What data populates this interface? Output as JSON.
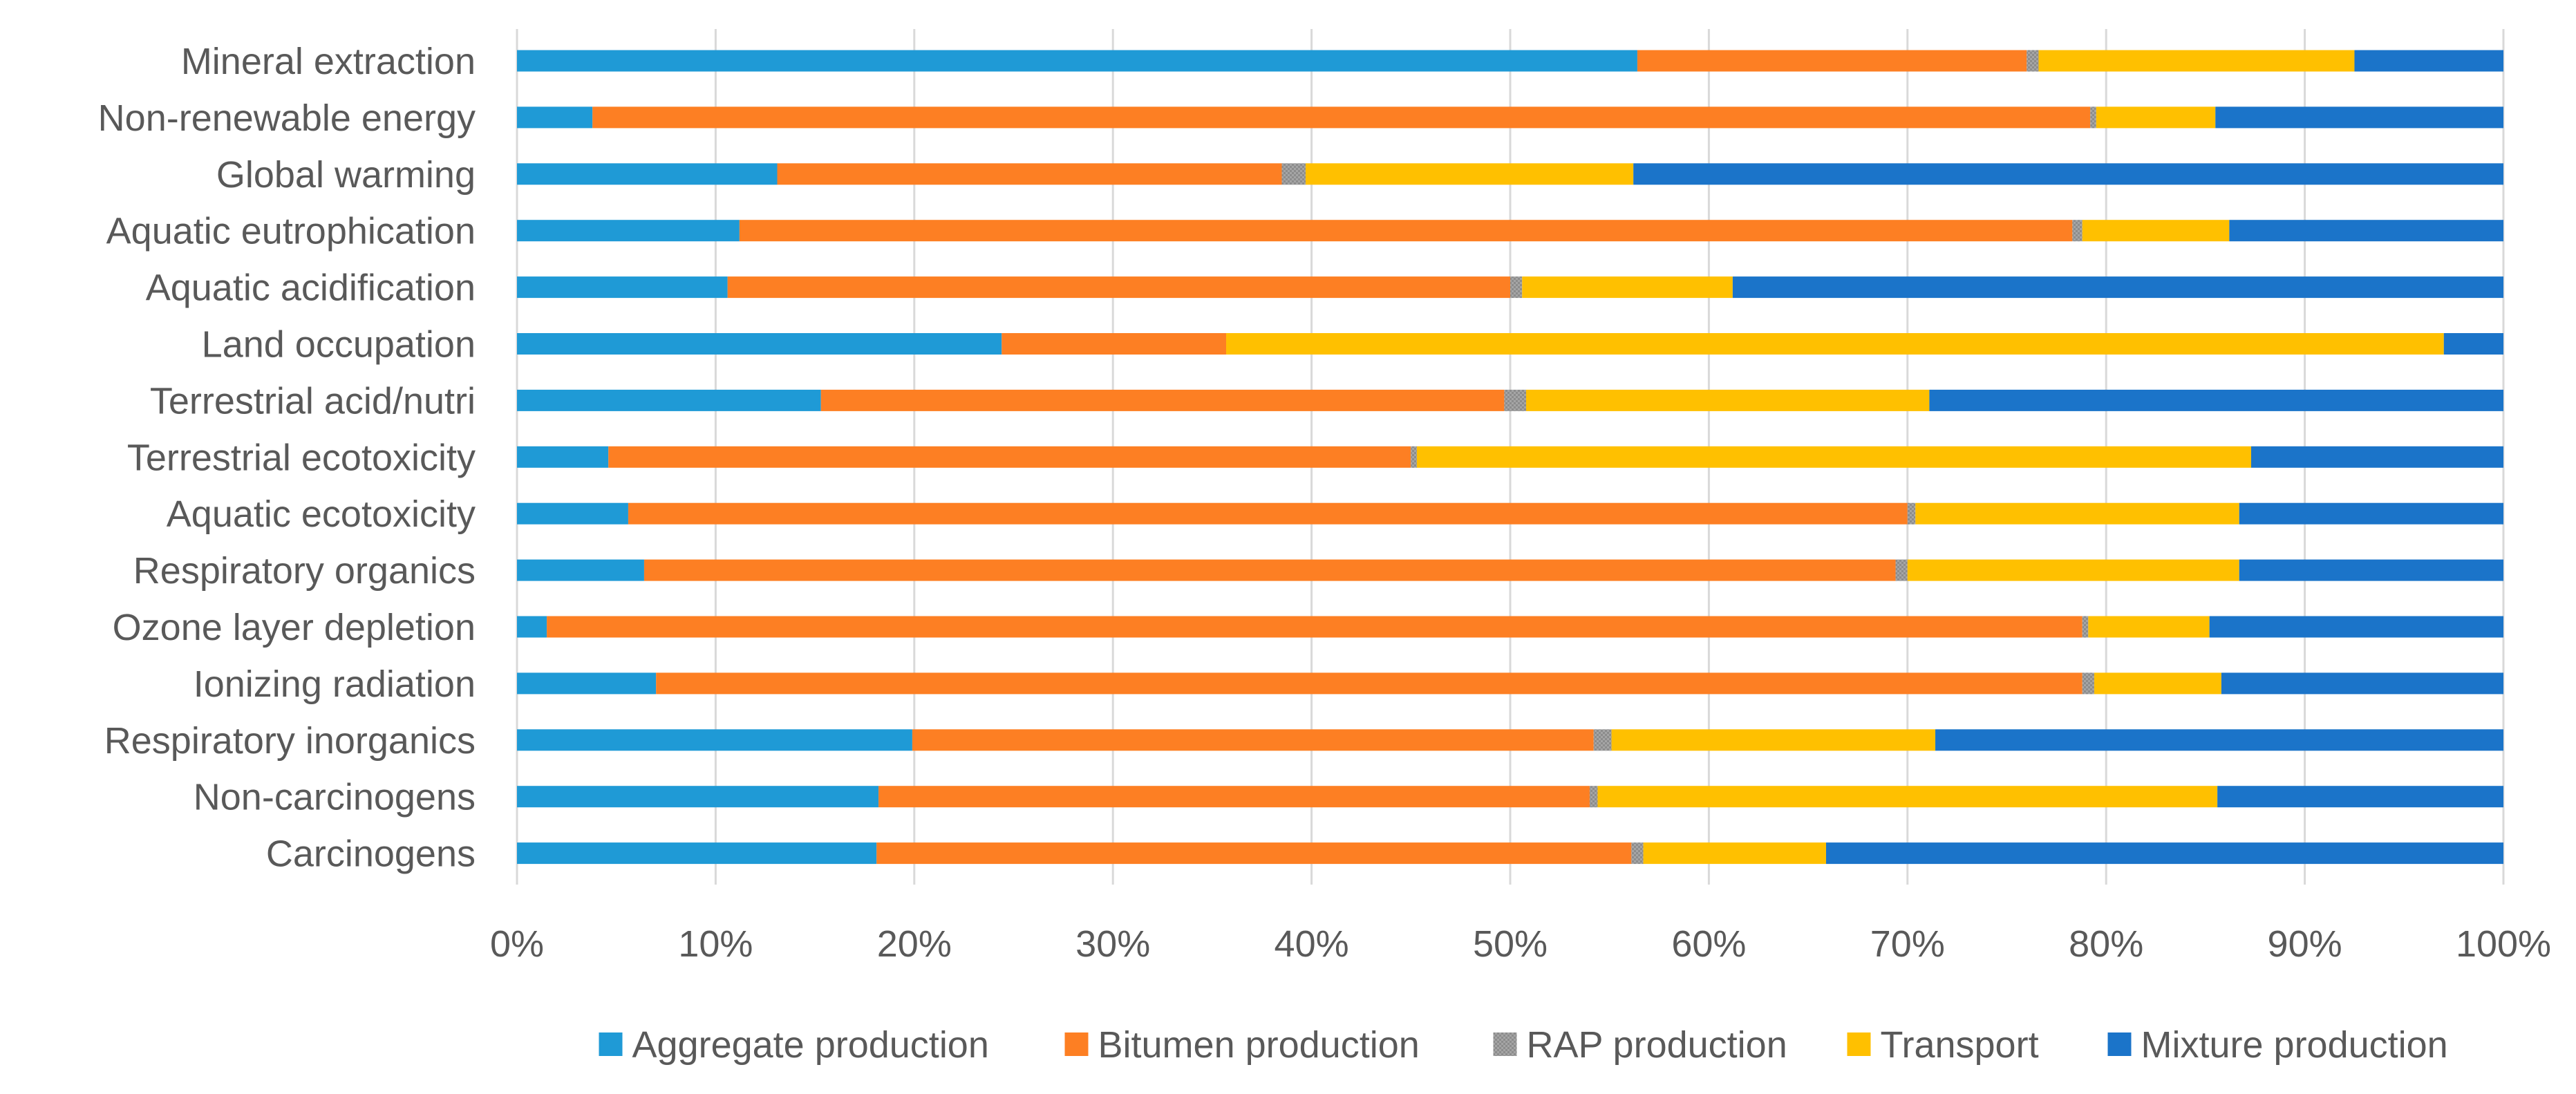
{
  "chart_data": {
    "type": "bar",
    "orientation": "horizontal",
    "stacked": "percent",
    "title": "",
    "xlabel": "",
    "ylabel": "",
    "xlim": [
      0,
      100
    ],
    "x_ticks": [
      "0%",
      "10%",
      "20%",
      "30%",
      "40%",
      "50%",
      "60%",
      "70%",
      "80%",
      "90%",
      "100%"
    ],
    "grid": true,
    "legend_position": "bottom",
    "categories": [
      "Mineral extraction",
      "Non-renewable energy",
      "Global warming",
      "Aquatic eutrophication",
      "Aquatic acidification",
      "Land occupation",
      "Terrestrial acid/nutri",
      "Terrestrial ecotoxicity",
      "Aquatic ecotoxicity",
      "Respiratory organics",
      "Ozone layer depletion",
      "Ionizing radiation",
      "Respiratory inorganics",
      "Non-carcinogens",
      "Carcinogens"
    ],
    "series": [
      {
        "name": "Aggregate production",
        "color": "#1f9ad6",
        "values": [
          56.4,
          3.8,
          13.1,
          11.2,
          10.6,
          24.4,
          15.3,
          4.6,
          5.6,
          6.4,
          1.5,
          7.0,
          19.9,
          18.2,
          18.1
        ]
      },
      {
        "name": "Bitumen production",
        "color": "#fd7f23",
        "values": [
          19.6,
          75.4,
          25.4,
          67.1,
          39.4,
          11.3,
          34.4,
          40.4,
          64.4,
          63.0,
          77.3,
          71.8,
          34.3,
          35.8,
          38.0
        ]
      },
      {
        "name": "RAP production",
        "color": "#a5a5a5",
        "values": [
          0.6,
          0.3,
          1.2,
          0.5,
          0.6,
          0.0,
          1.1,
          0.3,
          0.4,
          0.6,
          0.3,
          0.6,
          0.9,
          0.4,
          0.6
        ]
      },
      {
        "name": "Transport",
        "color": "#ffc000",
        "values": [
          15.9,
          6.0,
          16.5,
          7.4,
          10.6,
          61.3,
          20.3,
          42.0,
          16.3,
          16.7,
          6.1,
          6.4,
          16.3,
          31.2,
          9.2
        ]
      },
      {
        "name": "Mixture production",
        "color": "#1b74c9",
        "values": [
          7.5,
          14.5,
          43.8,
          13.8,
          38.8,
          3.0,
          28.9,
          12.7,
          13.3,
          13.3,
          14.8,
          14.2,
          28.6,
          14.4,
          34.1
        ]
      }
    ]
  }
}
